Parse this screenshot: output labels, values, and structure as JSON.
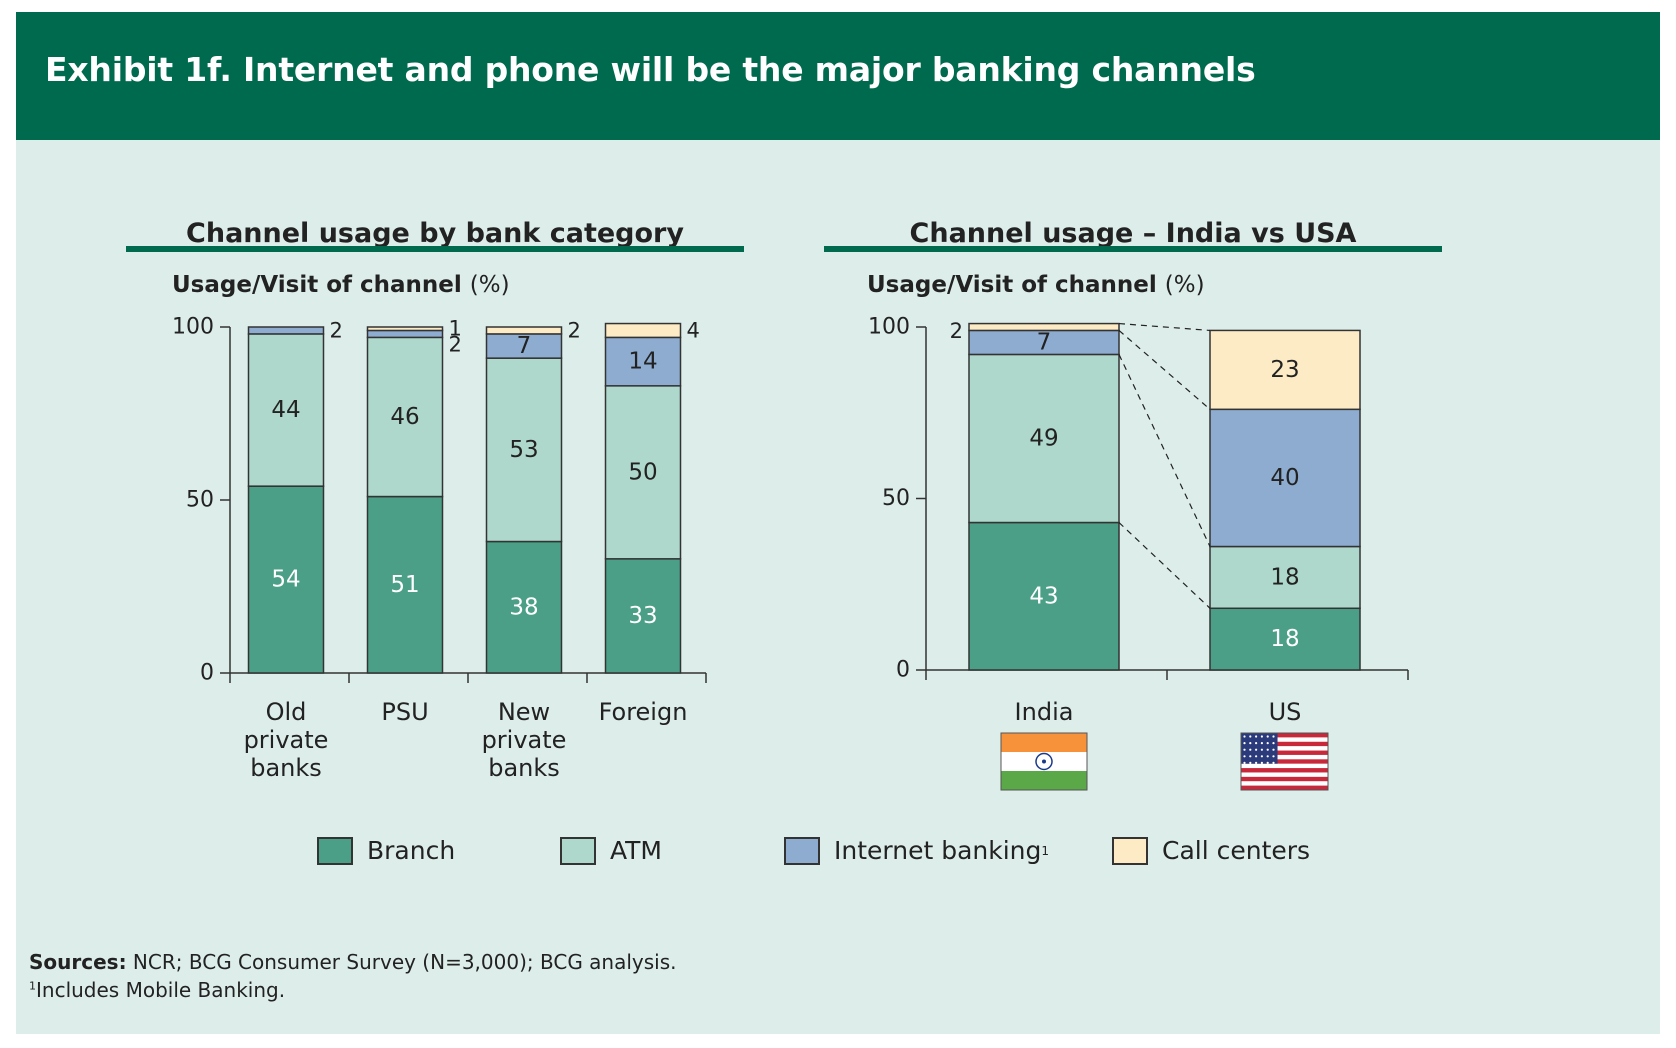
{
  "title": "Exhibit 1f. Internet and phone will be the major banking channels",
  "colors": {
    "branch": "#4a9f86",
    "atm": "#aed8cb",
    "internet": "#8eacd0",
    "call": "#fcebc5",
    "header": "#006a4e",
    "background": "#dcedea"
  },
  "left_panel": {
    "title": "Channel usage by bank category",
    "axis_title": "Usage/Visit of channel",
    "axis_unit": "(%)"
  },
  "right_panel": {
    "title": "Channel usage – India vs USA",
    "axis_title": "Usage/Visit of channel",
    "axis_unit": "(%)",
    "flags": [
      "india-flag-icon",
      "us-flag-icon"
    ]
  },
  "legend": [
    {
      "key": "branch",
      "label": "Branch",
      "sup": ""
    },
    {
      "key": "atm",
      "label": "ATM",
      "sup": ""
    },
    {
      "key": "internet",
      "label": "Internet banking",
      "sup": "1"
    },
    {
      "key": "call",
      "label": "Call centers",
      "sup": ""
    }
  ],
  "sources": {
    "label": "Sources:",
    "text": " NCR; BCG Consumer Survey (N=3,000); BCG analysis."
  },
  "footnote": {
    "mark": "1",
    "text": "Includes Mobile Banking."
  },
  "chart_data": [
    {
      "type": "bar",
      "stacked": true,
      "title": "Channel usage by bank category",
      "ylabel": "Usage/Visit of channel (%)",
      "ylim": [
        0,
        100
      ],
      "yticks": [
        0,
        50,
        100
      ],
      "categories": [
        [
          "Old",
          "private",
          "banks"
        ],
        [
          "PSU"
        ],
        [
          "New",
          "private",
          "banks"
        ],
        [
          "Foreign"
        ]
      ],
      "series": [
        {
          "name": "Branch",
          "key": "branch",
          "values": [
            54,
            51,
            38,
            33
          ]
        },
        {
          "name": "ATM",
          "key": "atm",
          "values": [
            44,
            46,
            53,
            50
          ]
        },
        {
          "name": "Internet banking",
          "key": "internet",
          "values": [
            2,
            2,
            7,
            14
          ]
        },
        {
          "name": "Call centers",
          "key": "call",
          "values": [
            0,
            1,
            2,
            4
          ]
        }
      ]
    },
    {
      "type": "bar",
      "stacked": true,
      "title": "Channel usage – India vs USA",
      "ylabel": "Usage/Visit of channel (%)",
      "ylim": [
        0,
        100
      ],
      "yticks": [
        0,
        50,
        100
      ],
      "categories": [
        [
          "India"
        ],
        [
          "US"
        ]
      ],
      "series": [
        {
          "name": "Branch",
          "key": "branch",
          "values": [
            43,
            18
          ]
        },
        {
          "name": "ATM",
          "key": "atm",
          "values": [
            49,
            18
          ]
        },
        {
          "name": "Internet banking",
          "key": "internet",
          "values": [
            7,
            40
          ]
        },
        {
          "name": "Call centers",
          "key": "call",
          "values": [
            2,
            23
          ]
        }
      ]
    }
  ]
}
